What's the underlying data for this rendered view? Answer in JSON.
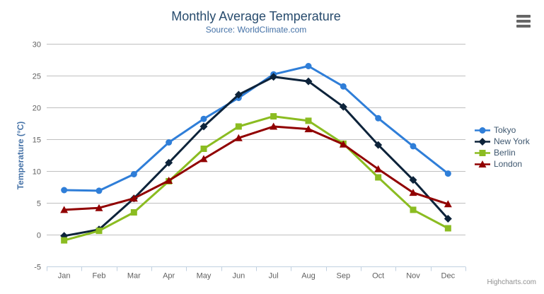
{
  "chart_data": {
    "type": "line",
    "title": "Monthly Average Temperature",
    "subtitle": "Source: WorldClimate.com",
    "ylabel": "Temperature (°C)",
    "xlabel": "",
    "categories": [
      "Jan",
      "Feb",
      "Mar",
      "Apr",
      "May",
      "Jun",
      "Jul",
      "Aug",
      "Sep",
      "Oct",
      "Nov",
      "Dec"
    ],
    "ylim": [
      -5,
      30
    ],
    "ytick_step": 5,
    "grid": "horizontal",
    "legend_position": "right",
    "series": [
      {
        "name": "Tokyo",
        "color": "#2f7ed8",
        "marker": "circle",
        "values": [
          7.0,
          6.9,
          9.5,
          14.5,
          18.2,
          21.5,
          25.2,
          26.5,
          23.3,
          18.3,
          13.9,
          9.6
        ]
      },
      {
        "name": "New York",
        "color": "#0d233a",
        "marker": "diamond",
        "values": [
          -0.2,
          0.8,
          5.7,
          11.3,
          17.0,
          22.0,
          24.8,
          24.1,
          20.1,
          14.1,
          8.6,
          2.5
        ]
      },
      {
        "name": "Berlin",
        "color": "#8bbc21",
        "marker": "square",
        "values": [
          -0.9,
          0.6,
          3.5,
          8.4,
          13.5,
          17.0,
          18.6,
          17.9,
          14.3,
          9.0,
          3.9,
          1.0
        ]
      },
      {
        "name": "London",
        "color": "#910000",
        "marker": "triangle",
        "values": [
          3.9,
          4.2,
          5.7,
          8.5,
          11.9,
          15.2,
          17.0,
          16.6,
          14.2,
          10.3,
          6.6,
          4.8
        ]
      }
    ],
    "credits": "Highcharts.com"
  }
}
